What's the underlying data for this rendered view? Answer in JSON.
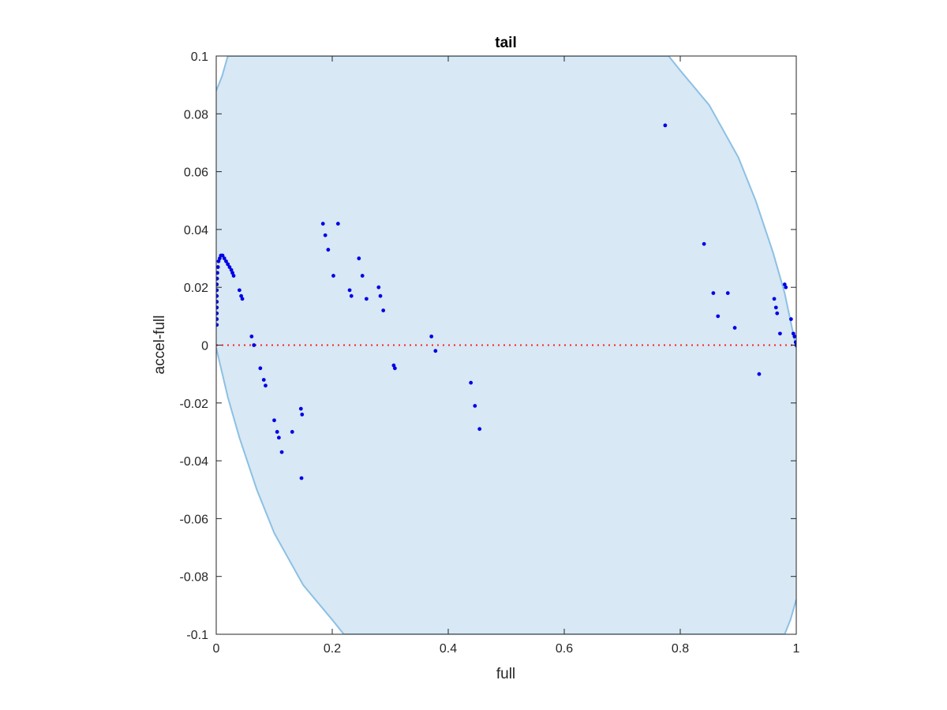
{
  "colors": {
    "band_fill": "#d8e8f4",
    "band_edge": "#8cc0e4",
    "points": "#0000e6",
    "zero_line": "#ff2020",
    "axes": "#262626"
  },
  "chart_data": {
    "type": "scatter",
    "title": "tail",
    "xlabel": "full",
    "ylabel": "accel-full",
    "xlim": [
      0,
      1
    ],
    "ylim": [
      -0.1,
      0.1
    ],
    "xticks": [
      0,
      0.2,
      0.4,
      0.6,
      0.8,
      1
    ],
    "xtick_labels": [
      "0",
      "0.2",
      "0.4",
      "0.6",
      "0.8",
      "1"
    ],
    "yticks": [
      -0.1,
      -0.08,
      -0.06,
      -0.04,
      -0.02,
      0,
      0.02,
      0.04,
      0.06,
      0.08,
      0.1
    ],
    "ytick_labels": [
      "-0.1",
      "-0.08",
      "-0.06",
      "-0.04",
      "-0.02",
      "0",
      "0.02",
      "0.04",
      "0.06",
      "0.08",
      "0.1"
    ],
    "grid": false,
    "reference_line": {
      "y": 0,
      "style": "dotted"
    },
    "band": {
      "description": "shaded envelope",
      "upper": [
        [
          0,
          0.088
        ],
        [
          0.01,
          0.093
        ],
        [
          0.02,
          0.1
        ],
        [
          0.78,
          0.1
        ],
        [
          0.8,
          0.095
        ],
        [
          0.85,
          0.083
        ],
        [
          0.9,
          0.065
        ],
        [
          0.93,
          0.05
        ],
        [
          0.96,
          0.032
        ],
        [
          0.98,
          0.018
        ],
        [
          1,
          -0.001
        ]
      ],
      "lower": [
        [
          0,
          -0.001
        ],
        [
          0.02,
          -0.018
        ],
        [
          0.04,
          -0.032
        ],
        [
          0.07,
          -0.05
        ],
        [
          0.1,
          -0.065
        ],
        [
          0.15,
          -0.083
        ],
        [
          0.2,
          -0.095
        ],
        [
          0.22,
          -0.1
        ],
        [
          0.98,
          -0.1
        ],
        [
          0.99,
          -0.095
        ],
        [
          1,
          -0.088
        ]
      ]
    },
    "series": [
      {
        "points": [
          [
            0.001,
            0.007
          ],
          [
            0.001,
            0.009
          ],
          [
            0.001,
            0.011
          ],
          [
            0.001,
            0.013
          ],
          [
            0.001,
            0.015
          ],
          [
            0.001,
            0.017
          ],
          [
            0.001,
            0.019
          ],
          [
            0.001,
            0.021
          ],
          [
            0.0015,
            0.023
          ],
          [
            0.002,
            0.025
          ],
          [
            0.003,
            0.027
          ],
          [
            0.004,
            0.029
          ],
          [
            0.006,
            0.03
          ],
          [
            0.008,
            0.031
          ],
          [
            0.011,
            0.031
          ],
          [
            0.014,
            0.03
          ],
          [
            0.017,
            0.029
          ],
          [
            0.02,
            0.028
          ],
          [
            0.023,
            0.027
          ],
          [
            0.026,
            0.026
          ],
          [
            0.028,
            0.025
          ],
          [
            0.03,
            0.024
          ],
          [
            0.04,
            0.019
          ],
          [
            0.043,
            0.017
          ],
          [
            0.045,
            0.016
          ],
          [
            0.061,
            0.003
          ],
          [
            0.065,
            0.0
          ],
          [
            0.076,
            -0.008
          ],
          [
            0.082,
            -0.012
          ],
          [
            0.085,
            -0.014
          ],
          [
            0.1,
            -0.026
          ],
          [
            0.105,
            -0.03
          ],
          [
            0.108,
            -0.032
          ],
          [
            0.113,
            -0.037
          ],
          [
            0.131,
            -0.03
          ],
          [
            0.146,
            -0.022
          ],
          [
            0.148,
            -0.024
          ],
          [
            0.147,
            -0.046
          ],
          [
            0.184,
            0.042
          ],
          [
            0.188,
            0.038
          ],
          [
            0.193,
            0.033
          ],
          [
            0.202,
            0.024
          ],
          [
            0.21,
            0.042
          ],
          [
            0.23,
            0.019
          ],
          [
            0.233,
            0.017
          ],
          [
            0.246,
            0.03
          ],
          [
            0.252,
            0.024
          ],
          [
            0.259,
            0.016
          ],
          [
            0.28,
            0.02
          ],
          [
            0.283,
            0.017
          ],
          [
            0.288,
            0.012
          ],
          [
            0.306,
            -0.007
          ],
          [
            0.308,
            -0.008
          ],
          [
            0.371,
            0.003
          ],
          [
            0.378,
            -0.002
          ],
          [
            0.439,
            -0.013
          ],
          [
            0.446,
            -0.021
          ],
          [
            0.454,
            -0.029
          ],
          [
            0.774,
            0.076
          ],
          [
            0.841,
            0.035
          ],
          [
            0.857,
            0.018
          ],
          [
            0.865,
            0.01
          ],
          [
            0.882,
            0.018
          ],
          [
            0.894,
            0.006
          ],
          [
            0.936,
            -0.01
          ],
          [
            0.962,
            0.016
          ],
          [
            0.965,
            0.013
          ],
          [
            0.967,
            0.011
          ],
          [
            0.972,
            0.004
          ],
          [
            0.98,
            0.021
          ],
          [
            0.982,
            0.02
          ],
          [
            0.991,
            0.009
          ],
          [
            0.995,
            0.004
          ],
          [
            0.997,
            0.003
          ],
          [
            0.999,
            0.001
          ],
          [
            1.0,
            0.0
          ]
        ]
      }
    ]
  }
}
